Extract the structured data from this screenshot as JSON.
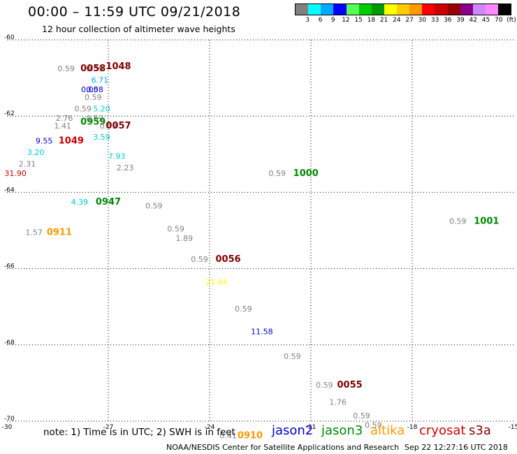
{
  "header": {
    "title": "00:00 – 11:59 UTC 09/21/2018",
    "subtitle": "12 hour collection of altimeter wave heights"
  },
  "color_scale": {
    "swatches": [
      "#808080",
      "#00ffff",
      "#00aaff",
      "#0000ff",
      "#55ff55",
      "#00cc00",
      "#009900",
      "#ffff00",
      "#ffcc00",
      "#ff9900",
      "#ff0000",
      "#cc0000",
      "#990000",
      "#880088",
      "#cc88ff",
      "#ff88ff",
      "#000000"
    ],
    "labels": [
      "3",
      "6",
      "9",
      "12",
      "15",
      "18",
      "21",
      "24",
      "27",
      "30",
      "33",
      "36",
      "39",
      "42",
      "45",
      "70",
      "(ft)"
    ]
  },
  "colors": {
    "jason2": "#0000cc",
    "jason3": "#008800",
    "altika": "#ff9900",
    "cryosat": "#cc0000",
    "s3a": "#800000",
    "value": "#808080"
  },
  "chart_data": {
    "type": "scatter",
    "xlabel": "",
    "ylabel": "",
    "xlim": [
      -30,
      -15
    ],
    "ylim": [
      -70,
      -60
    ],
    "x_ticks": [
      -30,
      -27,
      -24,
      -21,
      -18,
      -15
    ],
    "x_tick_labels": [
      "-30",
      "-27",
      "-24",
      "-21",
      "-18",
      "-15"
    ],
    "y_ticks": [
      -60,
      -62,
      -64,
      -66,
      -68,
      -70
    ],
    "y_tick_labels": [
      "-60",
      "-62",
      "-64",
      "-66",
      "-68",
      "-70"
    ],
    "grid": true,
    "values": [
      {
        "x": -28.25,
        "y": -60.75,
        "text": "0.59",
        "color": "#808080",
        "size": 11
      },
      {
        "x": -27.4,
        "y": -60.75,
        "text": "0.59",
        "color": "#808080",
        "size": 11
      },
      {
        "x": -27.45,
        "y": -60.75,
        "text": "0058",
        "color": "#800000",
        "size": 13,
        "bold": true
      },
      {
        "x": -26.7,
        "y": -60.7,
        "text": "1048",
        "color": "#800000",
        "size": 13,
        "bold": true
      },
      {
        "x": -27.25,
        "y": -61.05,
        "text": "6.71",
        "color": "#00aaff",
        "size": 11
      },
      {
        "x": -27.55,
        "y": -61.3,
        "text": "0.00",
        "color": "#0000cc",
        "size": 11
      },
      {
        "x": -27.4,
        "y": -61.3,
        "text": "0.58",
        "color": "#0000cc",
        "size": 11
      },
      {
        "x": -27.45,
        "y": -61.5,
        "text": "0.59",
        "color": "#808080",
        "size": 11
      },
      {
        "x": -27.2,
        "y": -61.8,
        "text": "5.20",
        "color": "#00cccc",
        "size": 11
      },
      {
        "x": -27.75,
        "y": -61.8,
        "text": "0.59",
        "color": "#808080",
        "size": 11
      },
      {
        "x": -28.3,
        "y": -62.05,
        "text": "2.76",
        "color": "#808080",
        "size": 11
      },
      {
        "x": -28.35,
        "y": -62.25,
        "text": "1.41",
        "color": "#808080",
        "size": 11
      },
      {
        "x": -27.4,
        "y": -62.05,
        "text": "0.59",
        "color": "#808080",
        "size": 11
      },
      {
        "x": -27.45,
        "y": -62.15,
        "text": "0959",
        "color": "#008800",
        "size": 13,
        "bold": true
      },
      {
        "x": -27.0,
        "y": -62.25,
        "text": "0.59",
        "color": "#808080",
        "size": 11
      },
      {
        "x": -26.7,
        "y": -62.25,
        "text": "0057",
        "color": "#800000",
        "size": 13,
        "bold": true
      },
      {
        "x": -27.2,
        "y": -62.55,
        "text": "3.59",
        "color": "#00cccc",
        "size": 11
      },
      {
        "x": -28.9,
        "y": -62.65,
        "text": "9.55",
        "color": "#0000cc",
        "size": 11
      },
      {
        "x": -28.1,
        "y": -62.65,
        "text": "1049",
        "color": "#cc0000",
        "size": 13,
        "bold": true
      },
      {
        "x": -29.15,
        "y": -62.95,
        "text": "3.20",
        "color": "#00cccc",
        "size": 11
      },
      {
        "x": -26.75,
        "y": -63.05,
        "text": "7.93",
        "color": "#00cccc",
        "size": 11
      },
      {
        "x": -29.4,
        "y": -63.25,
        "text": "2.31",
        "color": "#808080",
        "size": 11
      },
      {
        "x": -26.5,
        "y": -63.35,
        "text": "2.23",
        "color": "#808080",
        "size": 11
      },
      {
        "x": -29.75,
        "y": -63.5,
        "text": "31.90",
        "color": "#cc0000",
        "size": 11
      },
      {
        "x": -22.0,
        "y": -63.5,
        "text": "0.59",
        "color": "#808080",
        "size": 11
      },
      {
        "x": -21.15,
        "y": -63.5,
        "text": "1000",
        "color": "#008800",
        "size": 13,
        "bold": true
      },
      {
        "x": -27.85,
        "y": -64.25,
        "text": "4.39",
        "color": "#00cccc",
        "size": 11
      },
      {
        "x": -27.0,
        "y": -64.25,
        "text": "0947",
        "color": "#008800",
        "size": 13,
        "bold": true
      },
      {
        "x": -25.65,
        "y": -64.35,
        "text": "0.59",
        "color": "#808080",
        "size": 11
      },
      {
        "x": -16.65,
        "y": -64.75,
        "text": "0.59",
        "color": "#808080",
        "size": 11
      },
      {
        "x": -15.8,
        "y": -64.75,
        "text": "1001",
        "color": "#008800",
        "size": 13,
        "bold": true
      },
      {
        "x": -29.2,
        "y": -65.05,
        "text": "1.57",
        "color": "#808080",
        "size": 11
      },
      {
        "x": -28.45,
        "y": -65.05,
        "text": "0911",
        "color": "#ff9900",
        "size": 13,
        "bold": true
      },
      {
        "x": -25.0,
        "y": -64.95,
        "text": "0.59",
        "color": "#808080",
        "size": 11
      },
      {
        "x": -24.75,
        "y": -65.2,
        "text": "1.89",
        "color": "#808080",
        "size": 11
      },
      {
        "x": -24.3,
        "y": -65.75,
        "text": "0.59",
        "color": "#808080",
        "size": 11
      },
      {
        "x": -23.45,
        "y": -65.75,
        "text": "0056",
        "color": "#800000",
        "size": 13,
        "bold": true
      },
      {
        "x": -23.8,
        "y": -66.35,
        "text": "21.44",
        "color": "#ffff00",
        "size": 11
      },
      {
        "x": -23.0,
        "y": -67.05,
        "text": "0.59",
        "color": "#808080",
        "size": 11
      },
      {
        "x": -22.45,
        "y": -67.65,
        "text": "11.58",
        "color": "#0000cc",
        "size": 11
      },
      {
        "x": -21.55,
        "y": -68.3,
        "text": "0.59",
        "color": "#808080",
        "size": 11
      },
      {
        "x": -20.6,
        "y": -69.05,
        "text": "0.59",
        "color": "#808080",
        "size": 11
      },
      {
        "x": -19.85,
        "y": -69.05,
        "text": "0055",
        "color": "#800000",
        "size": 13,
        "bold": true
      },
      {
        "x": -20.2,
        "y": -69.5,
        "text": "1.76",
        "color": "#808080",
        "size": 11
      },
      {
        "x": -19.5,
        "y": -69.85,
        "text": "0.59",
        "color": "#808080",
        "size": 11
      },
      {
        "x": -19.15,
        "y": -70.1,
        "text": "0.59",
        "color": "#808080",
        "size": 11
      },
      {
        "x": -23.45,
        "y": -70.38,
        "text": "0.41",
        "color": "#808080",
        "size": 11
      },
      {
        "x": -22.8,
        "y": -70.38,
        "text": "0910",
        "color": "#ff9900",
        "size": 13,
        "bold": true
      }
    ]
  },
  "footer": {
    "note": "note:  1) Time is in UTC;  2) SWH is in feet",
    "satellites": [
      {
        "name": "jason2",
        "color": "#0000cc"
      },
      {
        "name": "jason3",
        "color": "#008800"
      },
      {
        "name": "altika",
        "color": "#ff9900"
      },
      {
        "name": "cryosat",
        "color": "#cc0000"
      },
      {
        "name": "s3a",
        "color": "#800000"
      }
    ],
    "credit": "NOAA/NESDIS Center for Satellite Applications and Research",
    "generated": "Sep 22 12:27:16 UTC 2018"
  }
}
